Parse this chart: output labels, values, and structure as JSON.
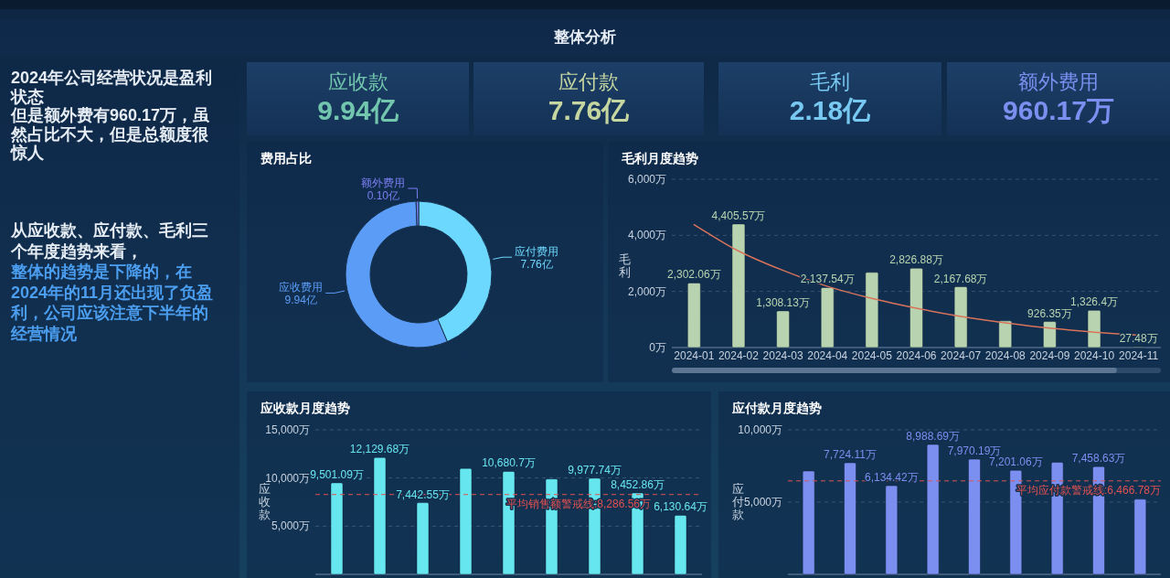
{
  "chart_data": [
    {
      "type": "other",
      "title": "整体分析"
    },
    {
      "type": "other",
      "annotations": [
        "2024年公司经营状况是盈利状态",
        "但是额外费有960.17万，虽然占比不大，但是总额度很惊人",
        "从应收款、应付款、毛利三个年度趋势来看，",
        "整体的趋势是下降的，在2024年的11月还出现了负盈利，公司应该注意下半年的经营情况"
      ]
    },
    {
      "type": "other",
      "title": "应收款",
      "annotations": [
        "9.94亿"
      ]
    },
    {
      "type": "other",
      "title": "应付款",
      "annotations": [
        "7.76亿"
      ]
    },
    {
      "type": "other",
      "title": "毛利",
      "annotations": [
        "2.18亿"
      ]
    },
    {
      "type": "other",
      "title": "额外费用",
      "annotations": [
        "960.17万"
      ]
    },
    {
      "type": "donut",
      "title": "费用占比",
      "categories": [
        "应付费用",
        "应收费用",
        "额外费用"
      ],
      "values": [
        7.76,
        9.94,
        0.1
      ],
      "value_labels": [
        "7.76亿",
        "9.94亿",
        "0.10亿"
      ],
      "colors": [
        "#6dd8fd",
        "#5b9df6",
        "#7a7ff2"
      ]
    },
    {
      "type": "bar",
      "title": "毛利月度趋势",
      "ylabel": "毛利",
      "categories": [
        "2024-01",
        "2024-02",
        "2024-03",
        "2024-04",
        "2024-05",
        "2024-06",
        "2024-07",
        "2024-08",
        "2024-09",
        "2024-10",
        "2024-11"
      ],
      "series": [
        {
          "type": "bar",
          "color": "#b8d3b0",
          "values": [
            2302.06,
            4405.57,
            1308.13,
            2137.54,
            2680,
            2826.88,
            2167.68,
            950,
            926.35,
            1326.4,
            27.48
          ],
          "value_labels": [
            "2,302.06万",
            "4,405.57万",
            "1,308.13万",
            "2,137.54万",
            null,
            "2,826.88万",
            "2,167.68万",
            null,
            "926.35万",
            "1,326.4万",
            "27.48万"
          ]
        },
        {
          "type": "line",
          "color": "#d9735a",
          "values": [
            4380,
            3440,
            2750,
            2180,
            1750,
            1400,
            1110,
            880,
            690,
            550,
            440
          ]
        }
      ],
      "ylim": [
        0,
        6000
      ],
      "yticks": [
        {
          "value": 0,
          "label": "0万"
        },
        {
          "value": 2000,
          "label": "2,000万"
        },
        {
          "value": 4000,
          "label": "4,000万"
        },
        {
          "value": 6000,
          "label": "6,000万"
        }
      ],
      "grid": "y"
    },
    {
      "type": "bar",
      "title": "应收款月度趋势",
      "ylabel": "应收款",
      "categories": [
        null,
        null,
        null,
        null,
        null,
        null,
        null,
        null,
        null
      ],
      "values": [
        9501.09,
        12129.68,
        7442.55,
        11000,
        10680.7,
        9900,
        9977.74,
        8452.86,
        6130.64
      ],
      "value_labels": [
        "9,501.09万",
        "12,129.68万",
        "7,442.55万",
        null,
        "10,680.7万",
        null,
        "9,977.74万",
        "8,452.86万",
        "6,130.64万"
      ],
      "color": "#66e6ef",
      "ylim": [
        0,
        15000
      ],
      "yticks": [
        {
          "value": 5000,
          "label": "5,000万"
        },
        {
          "value": 10000,
          "label": "10,000万"
        },
        {
          "value": 15000,
          "label": "15,000万"
        }
      ],
      "grid": "y",
      "ref_lines": [
        {
          "axis": "y",
          "value": 8286.56,
          "label": "平均销售额警戒线:8,286.56万",
          "color": "#e05252",
          "line_style": "dashed"
        }
      ]
    },
    {
      "type": "bar",
      "title": "应付款月度趋势",
      "ylabel": "应付款",
      "categories": [
        null,
        null,
        null,
        null,
        null,
        null,
        null,
        null,
        null
      ],
      "values": [
        7150,
        7724.11,
        6134.42,
        8988.69,
        7970.19,
        7201.06,
        7760,
        7458.63,
        5200
      ],
      "value_labels": [
        null,
        "7,724.11万",
        "6,134.42万",
        "8,988.69万",
        "7,970.19万",
        "7,201.06万",
        null,
        "7,458.63万",
        null
      ],
      "color": "#7b8ff0",
      "ylim": [
        0,
        10000
      ],
      "yticks": [
        {
          "value": 5000,
          "label": "5,000万"
        },
        {
          "value": 10000,
          "label": "10,000万"
        }
      ],
      "grid": "y",
      "ref_lines": [
        {
          "axis": "y",
          "value": 6466.78,
          "label": "平均应付款警戒线:6,466.78万",
          "color": "#e05252",
          "line_style": "dashed"
        }
      ]
    }
  ]
}
